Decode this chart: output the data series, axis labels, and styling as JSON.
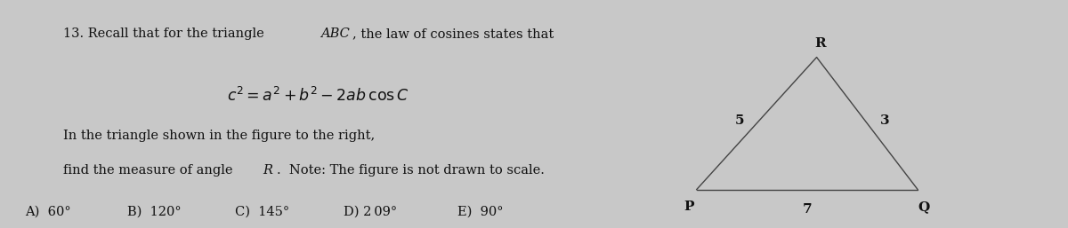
{
  "bg_color": "#c8c8c8",
  "text_color": "#111111",
  "font_size_main": 10.5,
  "font_size_formula": 12.5,
  "choices": [
    "A)  60°",
    "B)  120°",
    "C)  145°",
    "D) 2 09°",
    "E)  90°"
  ],
  "triangle": {
    "P": [
      0.0,
      0.0
    ],
    "Q": [
      7.0,
      0.0
    ],
    "R": [
      3.8,
      4.2
    ],
    "side_PR_label": "5",
    "side_QR_label": "3",
    "side_PQ_label": "7"
  }
}
